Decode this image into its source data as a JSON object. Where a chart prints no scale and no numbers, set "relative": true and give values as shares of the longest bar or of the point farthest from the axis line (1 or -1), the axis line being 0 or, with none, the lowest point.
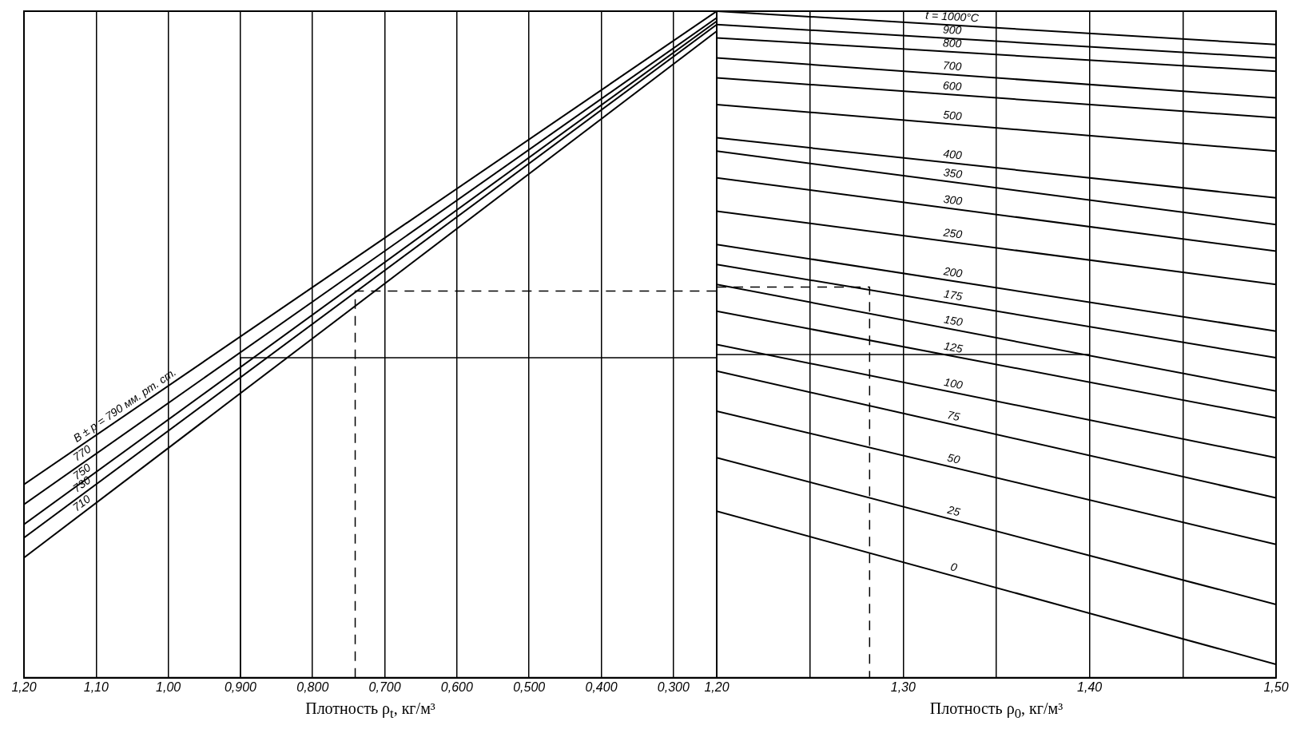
{
  "chart_data": [
    {
      "type": "line",
      "relative": true,
      "xlabel": "Плотность ρ$_{t}$, кг/м³",
      "xlim": [
        1.2,
        0.24
      ],
      "xticks": [
        {
          "value": 1.2,
          "label": "1,20"
        },
        {
          "value": 1.1,
          "label": "1,10"
        },
        {
          "value": 1.0,
          "label": "1,00"
        },
        {
          "value": 0.9,
          "label": "0,900"
        },
        {
          "value": 0.8,
          "label": "0,800"
        },
        {
          "value": 0.7,
          "label": "0,700"
        },
        {
          "value": 0.6,
          "label": "0,600"
        },
        {
          "value": 0.5,
          "label": "0,500"
        },
        {
          "value": 0.4,
          "label": "0,400"
        },
        {
          "value": 0.3,
          "label": "0,300"
        }
      ],
      "grid": "x",
      "legend": false,
      "series": [
        {
          "name": "B ± p = 790 мм. рт. ст.",
          "color": "#000000",
          "x": [
            1.2,
            0.24
          ],
          "values": [
            0.29,
            1.0
          ]
        },
        {
          "name": "770",
          "color": "#000000",
          "x": [
            1.2,
            0.24
          ],
          "values": [
            0.26,
            0.99
          ]
        },
        {
          "name": "750",
          "color": "#000000",
          "x": [
            1.2,
            0.24
          ],
          "values": [
            0.23,
            0.985
          ]
        },
        {
          "name": "730",
          "color": "#000000",
          "x": [
            1.2,
            0.24
          ],
          "values": [
            0.21,
            0.98
          ]
        },
        {
          "name": "710",
          "color": "#000000",
          "x": [
            1.2,
            0.24
          ],
          "values": [
            0.18,
            0.97
          ]
        },
        {
          "color": "#000000",
          "line_style": "solid",
          "x": [
            0.9,
            0.9,
            0.24
          ],
          "values": [
            0,
            0.48,
            0.48
          ]
        },
        {
          "color": "#000000",
          "line_style": "dashed",
          "x": [
            0.741,
            0.741,
            0.24
          ],
          "values": [
            0,
            0.58,
            0.58
          ]
        }
      ]
    },
    {
      "type": "line",
      "relative": true,
      "xlabel": "Плотность ρ$_{0}$, кг/м³",
      "xlim": [
        1.2,
        1.5
      ],
      "xticks": [
        {
          "value": 1.2,
          "label": "1,20"
        },
        {
          "value": 1.25,
          "label": null
        },
        {
          "value": 1.3,
          "label": "1,30"
        },
        {
          "value": 1.35,
          "label": null
        },
        {
          "value": 1.4,
          "label": "1,40"
        },
        {
          "value": 1.45,
          "label": null
        },
        {
          "value": 1.5,
          "label": "1,50"
        }
      ],
      "grid": "x",
      "legend": false,
      "series": [
        {
          "name": "t = 1000°C",
          "color": "#000000",
          "x": [
            1.2,
            1.5
          ],
          "values": [
            1.0,
            0.95
          ]
        },
        {
          "name": "900",
          "color": "#000000",
          "x": [
            1.2,
            1.5
          ],
          "values": [
            0.98,
            0.93
          ]
        },
        {
          "name": "800",
          "color": "#000000",
          "x": [
            1.2,
            1.5
          ],
          "values": [
            0.96,
            0.91
          ]
        },
        {
          "name": "700",
          "color": "#000000",
          "x": [
            1.2,
            1.5
          ],
          "values": [
            0.93,
            0.87
          ]
        },
        {
          "name": "600",
          "color": "#000000",
          "x": [
            1.2,
            1.5
          ],
          "values": [
            0.9,
            0.84
          ]
        },
        {
          "name": "500",
          "color": "#000000",
          "x": [
            1.2,
            1.5
          ],
          "values": [
            0.86,
            0.79
          ]
        },
        {
          "name": "400",
          "color": "#000000",
          "x": [
            1.2,
            1.5
          ],
          "values": [
            0.81,
            0.72
          ]
        },
        {
          "name": "350",
          "color": "#000000",
          "x": [
            1.2,
            1.5
          ],
          "values": [
            0.79,
            0.68
          ]
        },
        {
          "name": "300",
          "color": "#000000",
          "x": [
            1.2,
            1.5
          ],
          "values": [
            0.75,
            0.64
          ]
        },
        {
          "name": "250",
          "color": "#000000",
          "x": [
            1.2,
            1.5
          ],
          "values": [
            0.7,
            0.59
          ]
        },
        {
          "name": "200",
          "color": "#000000",
          "x": [
            1.2,
            1.5
          ],
          "values": [
            0.65,
            0.52
          ]
        },
        {
          "name": "175",
          "color": "#000000",
          "x": [
            1.2,
            1.5
          ],
          "values": [
            0.62,
            0.48
          ]
        },
        {
          "name": "150",
          "color": "#000000",
          "x": [
            1.2,
            1.5
          ],
          "values": [
            0.59,
            0.43
          ]
        },
        {
          "name": "125",
          "color": "#000000",
          "x": [
            1.2,
            1.5
          ],
          "values": [
            0.55,
            0.39
          ]
        },
        {
          "name": "100",
          "color": "#000000",
          "x": [
            1.2,
            1.5
          ],
          "values": [
            0.5,
            0.33
          ]
        },
        {
          "name": "75",
          "color": "#000000",
          "x": [
            1.2,
            1.5
          ],
          "values": [
            0.46,
            0.27
          ]
        },
        {
          "name": "50",
          "color": "#000000",
          "x": [
            1.2,
            1.5
          ],
          "values": [
            0.4,
            0.2
          ]
        },
        {
          "name": "25",
          "color": "#000000",
          "x": [
            1.2,
            1.5
          ],
          "values": [
            0.33,
            0.11
          ]
        },
        {
          "name": "0",
          "color": "#000000",
          "x": [
            1.2,
            1.5
          ],
          "values": [
            0.25,
            0.02
          ]
        },
        {
          "color": "#000000",
          "line_style": "solid",
          "x": [
            1.2,
            1.4
          ],
          "values": [
            0.485,
            0.485
          ]
        },
        {
          "color": "#000000",
          "line_style": "dashed",
          "x": [
            1.2,
            1.282,
            1.282
          ],
          "values": [
            0.586,
            0.586,
            0
          ]
        }
      ]
    }
  ]
}
